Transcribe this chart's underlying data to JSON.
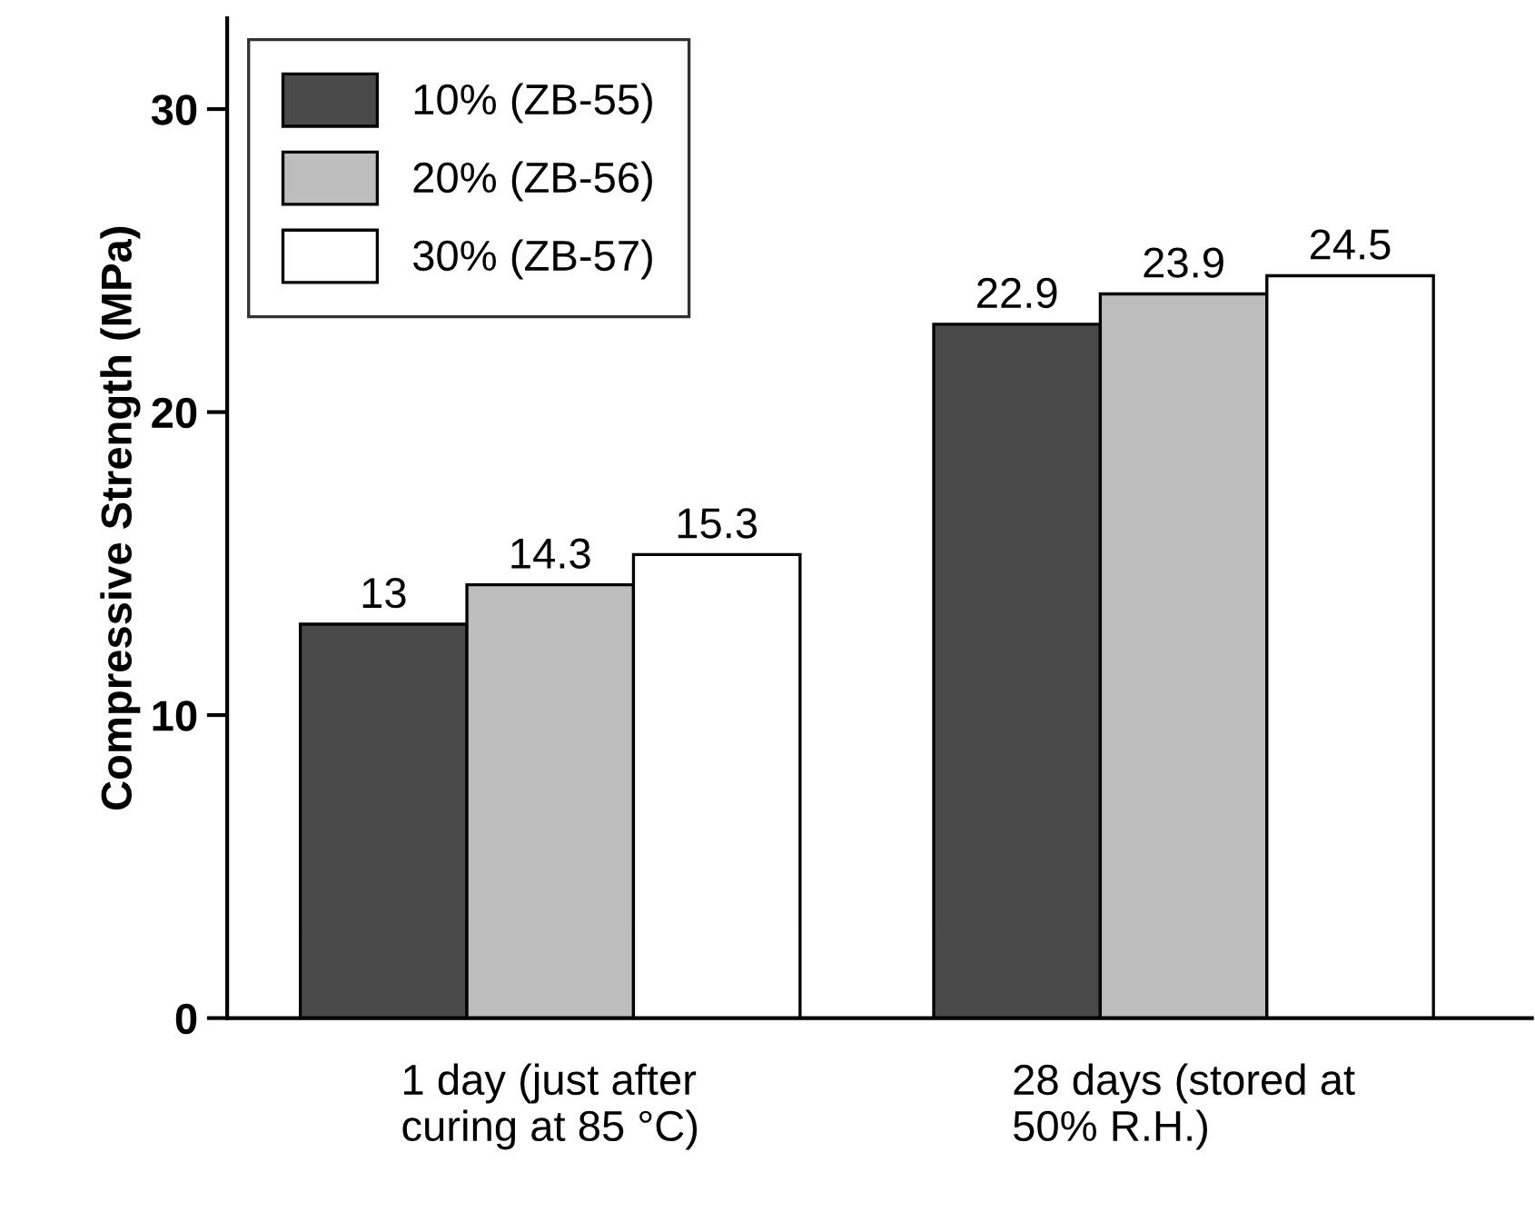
{
  "chart_data": {
    "type": "bar",
    "ylabel": "Compressive Strength (MPa)",
    "categories": [
      "1 day (just after\ncuring at 85 °C)",
      "28 days (stored at\n50% R.H.)"
    ],
    "series": [
      {
        "name": "10% (ZB-55)",
        "color": "#4a4a4a",
        "values": [
          13,
          22.9
        ]
      },
      {
        "name": "20% (ZB-56)",
        "color": "#bdbdbd",
        "values": [
          14.3,
          23.9
        ]
      },
      {
        "name": "30% (ZB-57)",
        "color": "#ffffff",
        "values": [
          15.3,
          24.5
        ]
      }
    ],
    "ylim": [
      0,
      33
    ],
    "yticks": [
      0,
      10,
      20,
      30
    ],
    "data_labels": true,
    "legend": "top left",
    "grid": false
  }
}
